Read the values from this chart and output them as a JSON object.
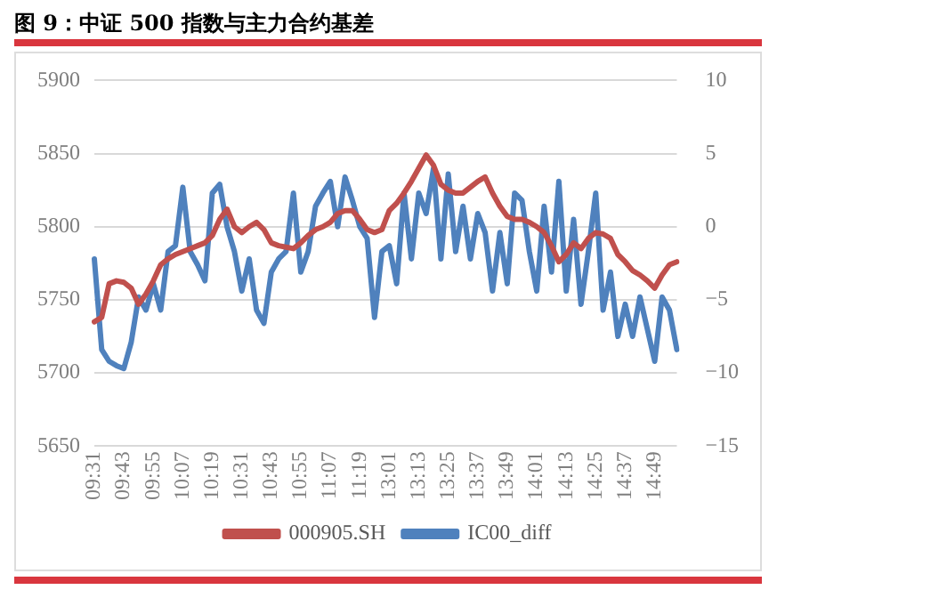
{
  "chart_data": {
    "type": "line",
    "title": "图 9：中证 500 指数与主力合约基差",
    "categories": [
      "09:31",
      null,
      null,
      null,
      "09:43",
      null,
      null,
      null,
      "09:55",
      null,
      null,
      null,
      "10:07",
      null,
      null,
      null,
      "10:19",
      null,
      null,
      null,
      "10:31",
      null,
      null,
      null,
      "10:43",
      null,
      null,
      null,
      "10:55",
      null,
      null,
      null,
      "11:07",
      null,
      null,
      null,
      "11:19",
      null,
      null,
      null,
      "13:01",
      null,
      null,
      null,
      "13:13",
      null,
      null,
      null,
      "13:25",
      null,
      null,
      null,
      "13:37",
      null,
      null,
      null,
      "13:49",
      null,
      null,
      null,
      "14:01",
      null,
      null,
      null,
      "14:13",
      null,
      null,
      null,
      "14:25",
      null,
      null,
      null,
      "14:37",
      null,
      null,
      null,
      "14:49",
      null,
      null,
      null
    ],
    "series": [
      {
        "name": "000905.SH",
        "color": "#c0504d",
        "values": [
          5735,
          5738,
          5761,
          5763,
          5762,
          5758,
          5747,
          5754,
          5763,
          5774,
          5778,
          5781,
          5783,
          5785,
          5787,
          5789,
          5794,
          5805,
          5812,
          5800,
          5796,
          5800,
          5803,
          5798,
          5789,
          5787,
          5786,
          5785,
          5789,
          5794,
          5798,
          5800,
          5803,
          5809,
          5811,
          5811,
          5805,
          5798,
          5796,
          5798,
          5811,
          5816,
          5823,
          5831,
          5840,
          5849,
          5842,
          5829,
          5825,
          5823,
          5823,
          5827,
          5831,
          5834,
          5823,
          5814,
          5807,
          5805,
          5805,
          5803,
          5800,
          5796,
          5787,
          5776,
          5781,
          5789,
          5785,
          5792,
          5796,
          5795,
          5792,
          5781,
          5776,
          5770,
          5767,
          5763,
          5758,
          5767,
          5774,
          5776
        ]
      },
      {
        "name": "IC00_diff",
        "color": "#4f81bd",
        "axis": "y2",
        "values": [
          -2.2,
          -8.4,
          -9.2,
          -9.5,
          -9.7,
          -7.9,
          -4.8,
          -5.7,
          -3.9,
          -5.7,
          -1.7,
          -1.3,
          2.7,
          -1.7,
          -2.6,
          -3.7,
          2.3,
          2.9,
          0.0,
          -1.7,
          -4.4,
          -2.2,
          -5.7,
          -6.6,
          -3.1,
          -2.2,
          -1.7,
          2.3,
          -3.1,
          -1.7,
          1.4,
          2.3,
          3.1,
          0.0,
          3.4,
          1.8,
          0.0,
          -0.8,
          -6.2,
          -1.7,
          -1.3,
          -3.9,
          2.3,
          -2.2,
          2.3,
          0.9,
          4.0,
          -2.2,
          3.6,
          -1.7,
          1.4,
          -2.2,
          0.9,
          -0.4,
          -4.4,
          -0.4,
          -3.9,
          2.3,
          1.8,
          -1.7,
          -4.4,
          1.4,
          -3.1,
          3.1,
          -4.4,
          0.5,
          -5.3,
          -1.7,
          2.3,
          -5.7,
          -3.1,
          -7.5,
          -5.3,
          -7.5,
          -4.8,
          -7.0,
          -9.2,
          -4.8,
          -5.7,
          -8.4
        ]
      }
    ],
    "ylim": [
      5650,
      5900
    ],
    "yticks": [
      5650,
      5700,
      5750,
      5800,
      5850,
      5900
    ],
    "y2lim": [
      -15,
      10
    ],
    "y2ticks": [
      {
        "value": -15,
        "label": "−15"
      },
      {
        "value": -10,
        "label": "−10"
      },
      {
        "value": -5,
        "label": "−5"
      },
      0,
      5,
      10
    ],
    "grid": "y",
    "legend": "bottom",
    "marker": "none",
    "line_style": "solid"
  }
}
